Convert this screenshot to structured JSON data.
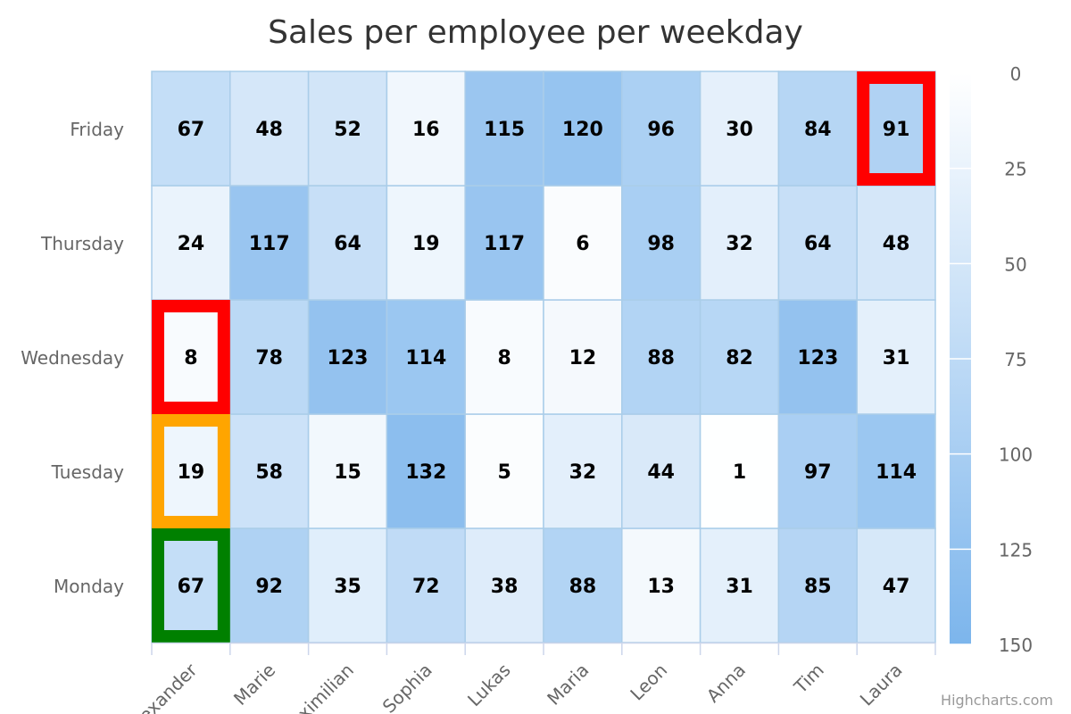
{
  "chart_data": {
    "type": "heatmap",
    "title": "Sales per employee per weekday",
    "x_categories": [
      "Alexander",
      "Marie",
      "Maximilian",
      "Sophia",
      "Lukas",
      "Maria",
      "Leon",
      "Anna",
      "Tim",
      "Laura"
    ],
    "y_categories": [
      "Monday",
      "Tuesday",
      "Wednesday",
      "Thursday",
      "Friday"
    ],
    "values": [
      [
        67,
        19,
        8,
        24,
        67
      ],
      [
        92,
        58,
        78,
        117,
        48
      ],
      [
        35,
        15,
        123,
        64,
        52
      ],
      [
        72,
        132,
        114,
        19,
        16
      ],
      [
        38,
        5,
        8,
        117,
        115
      ],
      [
        88,
        32,
        12,
        6,
        120
      ],
      [
        13,
        44,
        88,
        98,
        96
      ],
      [
        31,
        1,
        82,
        32,
        30
      ],
      [
        85,
        97,
        123,
        64,
        84
      ],
      [
        47,
        114,
        31,
        48,
        91
      ]
    ],
    "color_axis": {
      "min": 0,
      "max": 150,
      "ticks": [
        0,
        25,
        50,
        75,
        100,
        125,
        150
      ],
      "min_color": "#ffffff",
      "max_color": "#7cb5ec"
    },
    "highlights": [
      {
        "x": 9,
        "y": 4,
        "color": "#ff0000"
      },
      {
        "x": 0,
        "y": 2,
        "color": "#ff0000"
      },
      {
        "x": 0,
        "y": 1,
        "color": "#ffa500"
      },
      {
        "x": 0,
        "y": 0,
        "color": "#008000"
      }
    ]
  },
  "credits": "Highcharts.com"
}
